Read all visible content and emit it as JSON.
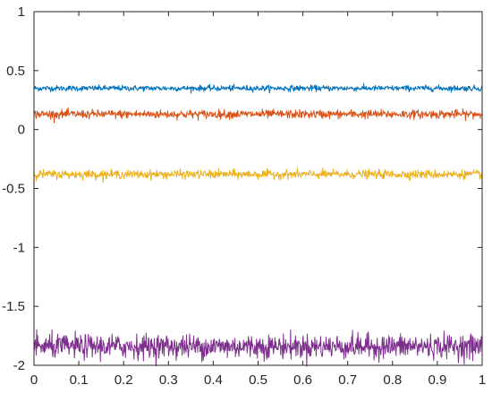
{
  "chart_data": {
    "type": "line",
    "title": "",
    "xlabel": "",
    "ylabel": "",
    "xlim": [
      0,
      1
    ],
    "ylim": [
      -2,
      1
    ],
    "grid": false,
    "legend": "none",
    "x_ticks": [
      "0",
      "0.1",
      "0.2",
      "0.3",
      "0.4",
      "0.5",
      "0.6",
      "0.7",
      "0.8",
      "0.9",
      "1"
    ],
    "y_ticks": [
      "1",
      "0.5",
      "0",
      "-0.5",
      "-1",
      "-1.5",
      "-2"
    ],
    "samples": 1000,
    "series": [
      {
        "mean": 0.35,
        "noise_amplitude": 0.012,
        "color": "#0072BD"
      },
      {
        "mean": 0.13,
        "noise_amplitude": 0.018,
        "color": "#D95319"
      },
      {
        "mean": -0.38,
        "noise_amplitude": 0.018,
        "color": "#EDB120"
      },
      {
        "mean": -1.84,
        "noise_amplitude": 0.05,
        "color": "#7E2F8E"
      }
    ]
  }
}
